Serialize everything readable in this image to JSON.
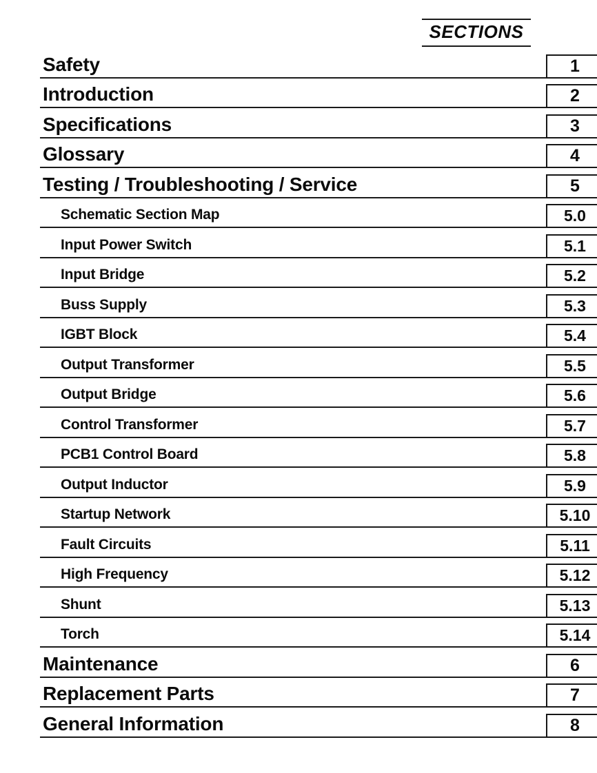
{
  "colors": {
    "ink": "#111111",
    "background": "#ffffff"
  },
  "toc": {
    "header_label": "SECTIONS",
    "rows": [
      {
        "title": "Safety",
        "number": "1",
        "level": "main"
      },
      {
        "title": "Introduction",
        "number": "2",
        "level": "main"
      },
      {
        "title": "Specifications",
        "number": "3",
        "level": "main"
      },
      {
        "title": "Glossary",
        "number": "4",
        "level": "main"
      },
      {
        "title": "Testing / Troubleshooting / Service",
        "number": "5",
        "level": "main"
      },
      {
        "title": "Schematic Section Map",
        "number": "5.0",
        "level": "sub"
      },
      {
        "title": "Input Power Switch",
        "number": "5.1",
        "level": "sub"
      },
      {
        "title": "Input Bridge",
        "number": "5.2",
        "level": "sub"
      },
      {
        "title": "Buss Supply",
        "number": "5.3",
        "level": "sub"
      },
      {
        "title": "IGBT Block",
        "number": "5.4",
        "level": "sub"
      },
      {
        "title": "Output Transformer",
        "number": "5.5",
        "level": "sub"
      },
      {
        "title": "Output Bridge",
        "number": "5.6",
        "level": "sub"
      },
      {
        "title": "Control Transformer",
        "number": "5.7",
        "level": "sub"
      },
      {
        "title": "PCB1 Control Board",
        "number": "5.8",
        "level": "sub"
      },
      {
        "title": "Output Inductor",
        "number": "5.9",
        "level": "sub"
      },
      {
        "title": "Startup Network",
        "number": "5.10",
        "level": "sub"
      },
      {
        "title": "Fault Circuits",
        "number": "5.11",
        "level": "sub"
      },
      {
        "title": "High Frequency",
        "number": "5.12",
        "level": "sub"
      },
      {
        "title": "Shunt",
        "number": "5.13",
        "level": "sub"
      },
      {
        "title": "Torch",
        "number": "5.14",
        "level": "sub"
      },
      {
        "title": "Maintenance",
        "number": "6",
        "level": "main"
      },
      {
        "title": "Replacement Parts",
        "number": "7",
        "level": "main"
      },
      {
        "title": "General Information",
        "number": "8",
        "level": "main"
      }
    ]
  }
}
